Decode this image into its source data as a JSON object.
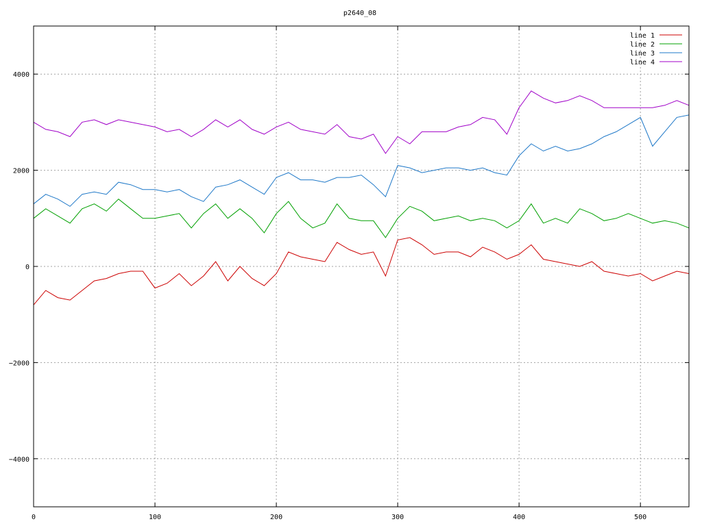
{
  "chart_data": {
    "type": "line",
    "title": "p2640_08",
    "xlabel": "",
    "ylabel": "",
    "xlim": [
      0,
      540
    ],
    "ylim": [
      -5000,
      5000
    ],
    "x_ticks": [
      0,
      100,
      200,
      300,
      400,
      500
    ],
    "y_ticks": [
      -4000,
      -2000,
      0,
      2000,
      4000
    ],
    "y_tick_labels": [
      "−4000",
      "−2000",
      "0",
      "2000",
      "4000"
    ],
    "grid": true,
    "legend_position": "top-right",
    "x": [
      0,
      10,
      20,
      30,
      40,
      50,
      60,
      70,
      80,
      90,
      100,
      110,
      120,
      130,
      140,
      150,
      160,
      170,
      180,
      190,
      200,
      210,
      220,
      230,
      240,
      250,
      260,
      270,
      280,
      290,
      300,
      310,
      320,
      330,
      340,
      350,
      360,
      370,
      380,
      390,
      400,
      410,
      420,
      430,
      440,
      450,
      460,
      470,
      480,
      490,
      500,
      510,
      520,
      530,
      540
    ],
    "series": [
      {
        "name": "line 1",
        "color": "#cc0000",
        "values": [
          -800,
          -500,
          -650,
          -700,
          -500,
          -300,
          -250,
          -150,
          -100,
          -100,
          -450,
          -350,
          -150,
          -400,
          -200,
          100,
          -300,
          0,
          -250,
          -400,
          -150,
          300,
          200,
          150,
          100,
          500,
          350,
          250,
          300,
          -200,
          550,
          600,
          450,
          250,
          300,
          300,
          200,
          400,
          300,
          150,
          250,
          450,
          150,
          100,
          50,
          0,
          100,
          -100,
          -150,
          -200,
          -150,
          -300,
          -200,
          -100,
          -150
        ]
      },
      {
        "name": "line 2",
        "color": "#00a000",
        "values": [
          1000,
          1200,
          1050,
          900,
          1200,
          1300,
          1150,
          1400,
          1200,
          1000,
          1000,
          1050,
          1100,
          800,
          1100,
          1300,
          1000,
          1200,
          1000,
          700,
          1100,
          1350,
          1000,
          800,
          900,
          1300,
          1000,
          950,
          950,
          600,
          1000,
          1250,
          1150,
          950,
          1000,
          1050,
          950,
          1000,
          950,
          800,
          950,
          1300,
          900,
          1000,
          900,
          1200,
          1100,
          950,
          1000,
          1100,
          1000,
          900,
          950,
          900,
          800
        ]
      },
      {
        "name": "line 3",
        "color": "#1e78c8",
        "values": [
          1300,
          1500,
          1400,
          1250,
          1500,
          1550,
          1500,
          1750,
          1700,
          1600,
          1600,
          1550,
          1600,
          1450,
          1350,
          1650,
          1700,
          1800,
          1650,
          1500,
          1850,
          1950,
          1800,
          1800,
          1750,
          1850,
          1850,
          1900,
          1700,
          1450,
          2100,
          2050,
          1950,
          2000,
          2050,
          2050,
          2000,
          2050,
          1950,
          1900,
          2300,
          2550,
          2400,
          2500,
          2400,
          2450,
          2550,
          2700,
          2800,
          2950,
          3100,
          2500,
          2800,
          3100,
          3150
        ]
      },
      {
        "name": "line 4",
        "color": "#a000c8",
        "values": [
          3000,
          2850,
          2800,
          2700,
          3000,
          3050,
          2950,
          3050,
          3000,
          2950,
          2900,
          2800,
          2850,
          2700,
          2850,
          3050,
          2900,
          3050,
          2850,
          2750,
          2900,
          3000,
          2850,
          2800,
          2750,
          2950,
          2700,
          2650,
          2750,
          2350,
          2700,
          2550,
          2800,
          2800,
          2800,
          2900,
          2950,
          3100,
          3050,
          2750,
          3300,
          3650,
          3500,
          3400,
          3450,
          3550,
          3450,
          3300,
          3300,
          3300,
          3300,
          3300,
          3350,
          3450,
          3350
        ]
      }
    ]
  }
}
